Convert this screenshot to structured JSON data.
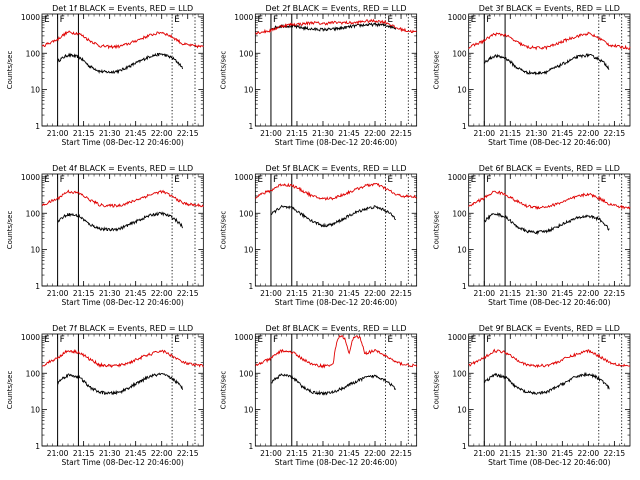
{
  "background": "#ffffff",
  "colors": {
    "events": "#000000",
    "lld": "#e00000",
    "axis": "#000000"
  },
  "common": {
    "ylabel": "Counts/sec",
    "xlabel": "Start Time (08-Dec-12 20:46:00)",
    "xticks": [
      "21:00",
      "21:15",
      "21:30",
      "21:45",
      "22:00",
      "22:15"
    ],
    "xtick_minutes": [
      21.0,
      21.25,
      21.5,
      21.75,
      22.0,
      22.25
    ],
    "yticks": [
      "1",
      "10",
      "100",
      "1000"
    ],
    "yscale": "log",
    "ylim": [
      1,
      1200
    ],
    "xlim_hours": [
      20.85,
      22.4
    ],
    "marker_F": "F",
    "marker_E": "E"
  },
  "chart_data": [
    {
      "type": "line",
      "title": "Det 1f BLACK = Events, RED = LLD",
      "solid_lines_hours": [
        21.0,
        21.2
      ],
      "dotted_lines_hours": [
        22.1,
        22.32
      ],
      "series": [
        {
          "name": "Events",
          "x": [
            21.0,
            21.1,
            21.2,
            21.3,
            21.4,
            21.5,
            21.6,
            21.7,
            21.8,
            21.9,
            22.0,
            22.1,
            22.2
          ],
          "y": [
            60,
            90,
            80,
            45,
            32,
            30,
            33,
            45,
            62,
            85,
            95,
            75,
            40
          ]
        },
        {
          "name": "LLD",
          "x": [
            20.85,
            21.0,
            21.1,
            21.2,
            21.3,
            21.4,
            21.5,
            21.6,
            21.7,
            21.8,
            21.9,
            22.0,
            22.1,
            22.2,
            22.3,
            22.4
          ],
          "y": [
            150,
            240,
            380,
            350,
            230,
            160,
            150,
            155,
            190,
            250,
            320,
            380,
            280,
            180,
            160,
            150
          ]
        }
      ]
    },
    {
      "type": "line",
      "title": "Det 2f BLACK = Events, RED = LLD",
      "solid_lines_hours": [
        21.0,
        21.2
      ],
      "dotted_lines_hours": [
        22.1,
        22.32
      ],
      "series": [
        {
          "name": "Events",
          "x": [
            21.0,
            21.1,
            21.2,
            21.3,
            21.4,
            21.5,
            21.6,
            21.7,
            21.8,
            21.9,
            22.0,
            22.1,
            22.2
          ],
          "y": [
            480,
            560,
            560,
            500,
            460,
            450,
            460,
            500,
            560,
            600,
            620,
            590,
            500
          ]
        },
        {
          "name": "LLD",
          "x": [
            20.85,
            21.0,
            21.1,
            21.2,
            21.3,
            21.4,
            21.5,
            21.6,
            21.7,
            21.8,
            21.9,
            22.0,
            22.1,
            22.2,
            22.3,
            22.4
          ],
          "y": [
            360,
            420,
            560,
            620,
            640,
            700,
            650,
            700,
            700,
            680,
            760,
            780,
            720,
            500,
            420,
            380
          ]
        }
      ]
    },
    {
      "type": "line",
      "title": "Det 3f BLACK = Events, RED = LLD",
      "solid_lines_hours": [
        21.0,
        21.2
      ],
      "dotted_lines_hours": [
        22.1,
        22.32
      ],
      "series": [
        {
          "name": "Events",
          "x": [
            21.0,
            21.1,
            21.2,
            21.3,
            21.4,
            21.5,
            21.6,
            21.7,
            21.8,
            21.9,
            22.0,
            22.1,
            22.2
          ],
          "y": [
            55,
            85,
            75,
            42,
            30,
            28,
            31,
            42,
            58,
            80,
            90,
            70,
            38
          ]
        },
        {
          "name": "LLD",
          "x": [
            20.85,
            21.0,
            21.1,
            21.2,
            21.3,
            21.4,
            21.5,
            21.6,
            21.7,
            21.8,
            21.9,
            22.0,
            22.1,
            22.2,
            22.3,
            22.4
          ],
          "y": [
            140,
            220,
            340,
            320,
            210,
            150,
            140,
            145,
            180,
            240,
            300,
            350,
            260,
            170,
            150,
            140
          ]
        }
      ]
    },
    {
      "type": "line",
      "title": "Det 4f BLACK = Events, RED = LLD",
      "solid_lines_hours": [
        21.0,
        21.2
      ],
      "dotted_lines_hours": [
        22.1,
        22.32
      ],
      "series": [
        {
          "name": "Events",
          "x": [
            21.0,
            21.1,
            21.2,
            21.3,
            21.4,
            21.5,
            21.6,
            21.7,
            21.8,
            21.9,
            22.0,
            22.1,
            22.2
          ],
          "y": [
            60,
            95,
            85,
            50,
            38,
            35,
            38,
            50,
            68,
            90,
            100,
            78,
            42
          ]
        },
        {
          "name": "LLD",
          "x": [
            20.85,
            21.0,
            21.1,
            21.2,
            21.3,
            21.4,
            21.5,
            21.6,
            21.7,
            21.8,
            21.9,
            22.0,
            22.1,
            22.2,
            22.3,
            22.4
          ],
          "y": [
            160,
            250,
            400,
            360,
            240,
            170,
            160,
            165,
            200,
            260,
            330,
            400,
            290,
            190,
            170,
            160
          ]
        }
      ]
    },
    {
      "type": "line",
      "title": "Det 5f BLACK = Events, RED = LLD",
      "solid_lines_hours": [
        21.0,
        21.2
      ],
      "dotted_lines_hours": [
        22.1,
        22.32
      ],
      "series": [
        {
          "name": "Events",
          "x": [
            21.0,
            21.1,
            21.2,
            21.3,
            21.4,
            21.5,
            21.6,
            21.7,
            21.8,
            21.9,
            22.0,
            22.1,
            22.2
          ],
          "y": [
            90,
            150,
            140,
            90,
            60,
            45,
            50,
            70,
            100,
            130,
            150,
            120,
            70
          ]
        },
        {
          "name": "LLD",
          "x": [
            20.85,
            21.0,
            21.1,
            21.2,
            21.3,
            21.4,
            21.5,
            21.6,
            21.7,
            21.8,
            21.9,
            22.0,
            22.1,
            22.2,
            22.3,
            22.4
          ],
          "y": [
            280,
            420,
            620,
            580,
            420,
            290,
            250,
            260,
            330,
            430,
            560,
            640,
            480,
            320,
            290,
            280
          ]
        }
      ]
    },
    {
      "type": "line",
      "title": "Det 6f BLACK = Events, RED = LLD",
      "solid_lines_hours": [
        21.0,
        21.2
      ],
      "dotted_lines_hours": [
        22.1,
        22.32
      ],
      "series": [
        {
          "name": "Events",
          "x": [
            21.0,
            21.1,
            21.2,
            21.3,
            21.4,
            21.5,
            21.6,
            21.7,
            21.8,
            21.9,
            22.0,
            22.1,
            22.2
          ],
          "y": [
            60,
            100,
            80,
            45,
            32,
            30,
            32,
            42,
            58,
            75,
            85,
            70,
            35
          ]
        },
        {
          "name": "LLD",
          "x": [
            20.85,
            21.0,
            21.1,
            21.2,
            21.3,
            21.4,
            21.5,
            21.6,
            21.7,
            21.8,
            21.9,
            22.0,
            22.1,
            22.2,
            22.3,
            22.4
          ],
          "y": [
            150,
            260,
            400,
            330,
            220,
            160,
            145,
            150,
            180,
            230,
            290,
            340,
            260,
            180,
            150,
            140
          ]
        }
      ]
    },
    {
      "type": "line",
      "title": "Det 7f BLACK = Events, RED = LLD",
      "solid_lines_hours": [
        21.0,
        21.2
      ],
      "dotted_lines_hours": [
        22.1,
        22.32
      ],
      "series": [
        {
          "name": "Events",
          "x": [
            21.0,
            21.1,
            21.2,
            21.3,
            21.4,
            21.5,
            21.6,
            21.7,
            21.8,
            21.9,
            22.0,
            22.1,
            22.2
          ],
          "y": [
            55,
            90,
            80,
            42,
            30,
            28,
            30,
            42,
            60,
            85,
            95,
            72,
            38
          ]
        },
        {
          "name": "LLD",
          "x": [
            20.85,
            21.0,
            21.1,
            21.2,
            21.3,
            21.4,
            21.5,
            21.6,
            21.7,
            21.8,
            21.9,
            22.0,
            22.1,
            22.2,
            22.3,
            22.4
          ],
          "y": [
            160,
            260,
            420,
            380,
            250,
            170,
            160,
            165,
            200,
            270,
            340,
            420,
            300,
            200,
            170,
            160
          ]
        }
      ]
    },
    {
      "type": "line",
      "title": "Det 8f BLACK = Events, RED = LLD",
      "solid_lines_hours": [
        21.0,
        21.2
      ],
      "dotted_lines_hours": [
        22.1,
        22.32
      ],
      "series": [
        {
          "name": "Events",
          "x": [
            21.0,
            21.1,
            21.2,
            21.3,
            21.4,
            21.5,
            21.6,
            21.7,
            21.8,
            21.9,
            22.0,
            22.1,
            22.2
          ],
          "y": [
            55,
            90,
            80,
            42,
            30,
            28,
            30,
            40,
            55,
            75,
            85,
            65,
            35
          ]
        },
        {
          "name": "LLD",
          "x": [
            20.85,
            21.0,
            21.1,
            21.2,
            21.3,
            21.4,
            21.5,
            21.6,
            21.65,
            21.7,
            21.75,
            21.8,
            21.85,
            21.9,
            22.0,
            22.1,
            22.2,
            22.3,
            22.4
          ],
          "y": [
            160,
            250,
            420,
            380,
            250,
            170,
            160,
            170,
            1000,
            1000,
            300,
            1000,
            1000,
            350,
            420,
            300,
            200,
            170,
            160
          ]
        }
      ]
    },
    {
      "type": "line",
      "title": "Det 9f BLACK = Events, RED = LLD",
      "solid_lines_hours": [
        21.0,
        21.2
      ],
      "dotted_lines_hours": [
        22.1,
        22.32
      ],
      "series": [
        {
          "name": "Events",
          "x": [
            21.0,
            21.1,
            21.2,
            21.3,
            21.4,
            21.5,
            21.6,
            21.7,
            21.8,
            21.9,
            22.0,
            22.1,
            22.2
          ],
          "y": [
            55,
            90,
            80,
            42,
            30,
            28,
            30,
            42,
            60,
            85,
            95,
            72,
            38
          ]
        },
        {
          "name": "LLD",
          "x": [
            20.85,
            21.0,
            21.1,
            21.2,
            21.3,
            21.4,
            21.5,
            21.6,
            21.7,
            21.8,
            21.9,
            22.0,
            22.1,
            22.2,
            22.3,
            22.4
          ],
          "y": [
            160,
            260,
            420,
            380,
            250,
            170,
            160,
            165,
            200,
            270,
            340,
            420,
            300,
            200,
            170,
            160
          ]
        }
      ]
    }
  ]
}
